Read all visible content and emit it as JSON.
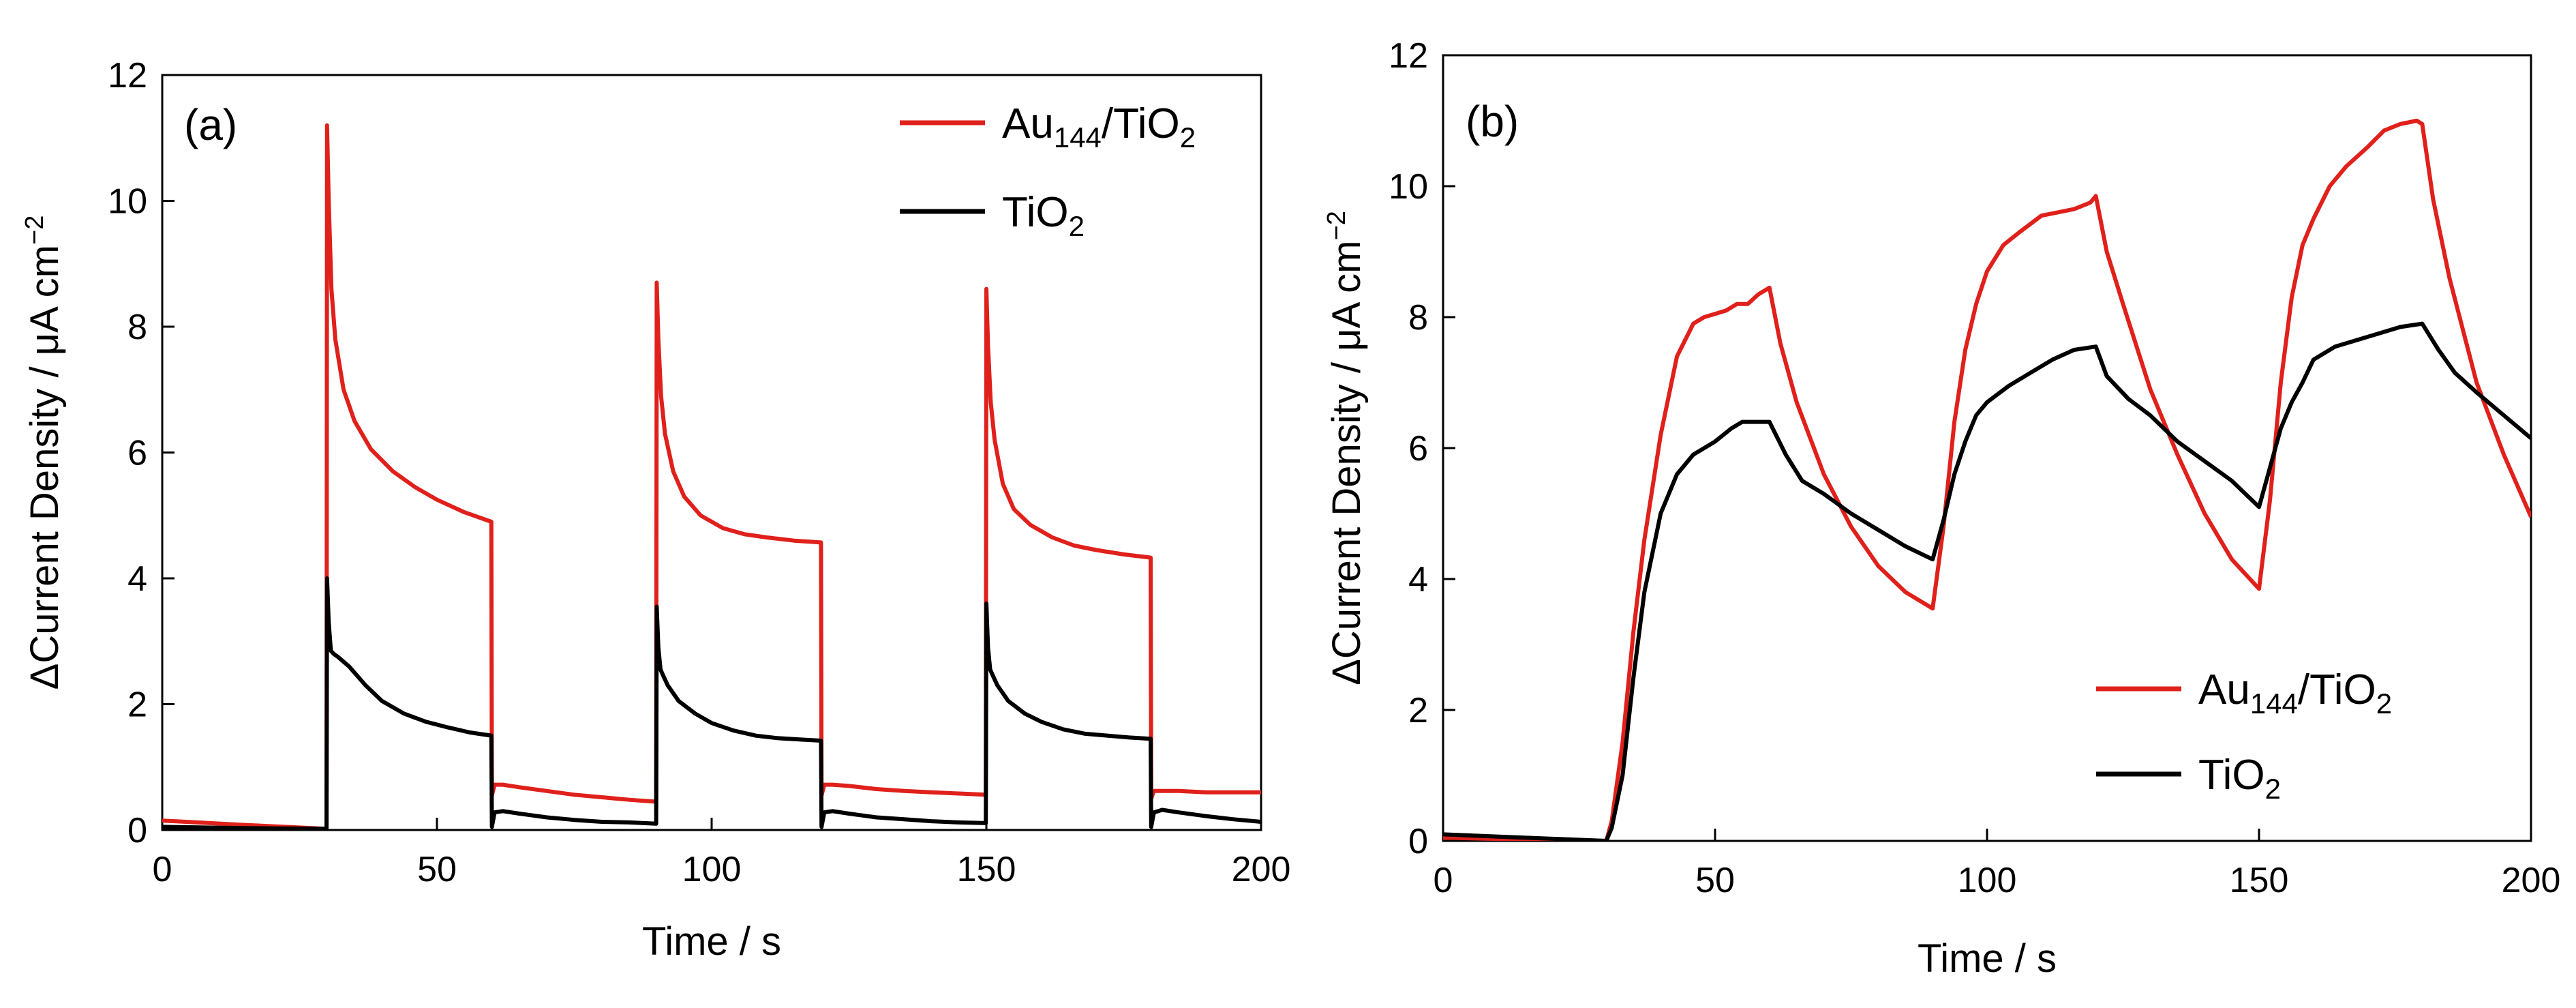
{
  "chart_data": [
    {
      "type": "line",
      "panel_label": "(a)",
      "xlabel": "Time / s",
      "ylabel_main": "ΔCurrent Density",
      "ylabel_unit": "/ μA cm",
      "ylabel_unit_sup": "−2",
      "xlim": [
        0,
        200
      ],
      "ylim": [
        0,
        12
      ],
      "xticks": [
        0,
        50,
        100,
        150,
        200
      ],
      "yticks": [
        0,
        2,
        4,
        6,
        8,
        10,
        12
      ],
      "legend_position": "top-right",
      "series": [
        {
          "name": "Au144/TiO2",
          "label_base": "Au",
          "label_sub": "144",
          "label_mid": "/TiO",
          "label_sub2": "2",
          "color": "#e0201b",
          "x": [
            0,
            15,
            29.9,
            30,
            30.3,
            30.8,
            31.5,
            33,
            35,
            38,
            42,
            46,
            50,
            55,
            59.9,
            60,
            60.5,
            62,
            65,
            70,
            75,
            80,
            85,
            89.9,
            90,
            90.3,
            90.8,
            91.5,
            93,
            95,
            98,
            102,
            106,
            110,
            115,
            119.9,
            120,
            120.5,
            122,
            125,
            130,
            135,
            140,
            145,
            149.9,
            150,
            150.3,
            150.8,
            151.5,
            153,
            155,
            158,
            162,
            166,
            170,
            175,
            179.9,
            180,
            180.5,
            182,
            185,
            190,
            195,
            200
          ],
          "y": [
            0.15,
            0.08,
            0.02,
            11.2,
            10.0,
            8.6,
            7.8,
            7.0,
            6.5,
            6.05,
            5.7,
            5.45,
            5.25,
            5.05,
            4.9,
            0.55,
            0.72,
            0.72,
            0.68,
            0.62,
            0.56,
            0.52,
            0.48,
            0.45,
            8.7,
            7.8,
            6.9,
            6.3,
            5.7,
            5.3,
            5.0,
            4.8,
            4.7,
            4.65,
            4.6,
            4.57,
            0.55,
            0.72,
            0.72,
            0.7,
            0.65,
            0.62,
            0.6,
            0.58,
            0.56,
            8.6,
            7.7,
            6.8,
            6.2,
            5.5,
            5.1,
            4.85,
            4.65,
            4.52,
            4.45,
            4.38,
            4.33,
            0.5,
            0.62,
            0.62,
            0.62,
            0.6,
            0.6,
            0.6
          ]
        },
        {
          "name": "TiO2",
          "label_base": "TiO",
          "label_sub": "2",
          "label_mid": "",
          "label_sub2": "",
          "color": "#000000",
          "x": [
            0,
            15,
            29.9,
            30,
            30.3,
            30.7,
            31.2,
            32,
            34,
            37,
            40,
            44,
            48,
            52,
            56,
            59.9,
            60,
            60.5,
            62,
            65,
            70,
            75,
            80,
            85,
            89.9,
            90,
            90.3,
            90.7,
            91.2,
            92,
            94,
            97,
            100,
            104,
            108,
            112,
            116,
            119.9,
            120,
            120.5,
            122,
            125,
            130,
            135,
            140,
            145,
            149.9,
            150,
            150.3,
            150.7,
            151.2,
            152,
            154,
            157,
            160,
            164,
            168,
            172,
            176,
            179.9,
            180,
            180.5,
            182,
            185,
            190,
            195,
            200
          ],
          "y": [
            0.05,
            0.03,
            0.02,
            4.0,
            3.3,
            2.85,
            2.8,
            2.75,
            2.6,
            2.3,
            2.05,
            1.85,
            1.72,
            1.63,
            1.55,
            1.5,
            0.05,
            0.28,
            0.3,
            0.26,
            0.2,
            0.16,
            0.13,
            0.12,
            0.1,
            3.55,
            2.9,
            2.55,
            2.45,
            2.3,
            2.05,
            1.85,
            1.7,
            1.58,
            1.5,
            1.46,
            1.44,
            1.42,
            0.05,
            0.28,
            0.3,
            0.26,
            0.2,
            0.17,
            0.14,
            0.12,
            0.11,
            3.6,
            2.9,
            2.55,
            2.45,
            2.3,
            2.05,
            1.85,
            1.72,
            1.6,
            1.53,
            1.5,
            1.47,
            1.45,
            0.05,
            0.28,
            0.32,
            0.28,
            0.22,
            0.17,
            0.13
          ]
        }
      ]
    },
    {
      "type": "line",
      "panel_label": "(b)",
      "xlabel": "Time / s",
      "ylabel_main": "ΔCurrent Density",
      "ylabel_unit": "/ μA cm",
      "ylabel_unit_sup": "−2",
      "xlim": [
        0,
        200
      ],
      "ylim": [
        0,
        12
      ],
      "xticks": [
        0,
        50,
        100,
        150,
        200
      ],
      "yticks": [
        0,
        2,
        4,
        6,
        8,
        10,
        12
      ],
      "legend_position": "bottom-right",
      "series": [
        {
          "name": "Au144/TiO2",
          "label_base": "Au",
          "label_sub": "144",
          "label_mid": "/TiO",
          "label_sub2": "2",
          "color": "#e0201b",
          "x": [
            0,
            15,
            30,
            31,
            33,
            35,
            37,
            40,
            43,
            46,
            48,
            50,
            52,
            54,
            56,
            58,
            60,
            62,
            65,
            70,
            75,
            80,
            85,
            90,
            92,
            94,
            96,
            98,
            100,
            103,
            106,
            110,
            113,
            116,
            119,
            120,
            122,
            125,
            130,
            135,
            140,
            145,
            150,
            152,
            154,
            156,
            158,
            160,
            163,
            166,
            170,
            173,
            176,
            179,
            180,
            182,
            185,
            190,
            195,
            200
          ],
          "y": [
            0.05,
            0.02,
            0.0,
            0.3,
            1.5,
            3.2,
            4.6,
            6.2,
            7.4,
            7.9,
            8.0,
            8.05,
            8.1,
            8.2,
            8.2,
            8.35,
            8.45,
            7.6,
            6.7,
            5.6,
            4.8,
            4.2,
            3.8,
            3.55,
            4.8,
            6.4,
            7.5,
            8.2,
            8.7,
            9.1,
            9.3,
            9.55,
            9.6,
            9.65,
            9.75,
            9.85,
            9.0,
            8.2,
            6.9,
            5.9,
            5.0,
            4.3,
            3.85,
            5.2,
            7.0,
            8.3,
            9.1,
            9.5,
            10.0,
            10.3,
            10.6,
            10.85,
            10.95,
            11.0,
            10.95,
            9.8,
            8.6,
            7.0,
            5.9,
            4.95
          ]
        },
        {
          "name": "TiO2",
          "label_base": "TiO",
          "label_sub": "2",
          "label_mid": "",
          "label_sub2": "",
          "color": "#000000",
          "x": [
            0,
            15,
            30,
            31,
            33,
            35,
            37,
            40,
            43,
            46,
            50,
            53,
            55,
            57,
            60,
            63,
            66,
            70,
            75,
            80,
            85,
            90,
            92,
            94,
            96,
            98,
            100,
            104,
            108,
            112,
            116,
            120,
            122,
            126,
            130,
            135,
            140,
            145,
            150,
            152,
            154,
            156,
            158,
            160,
            164,
            168,
            172,
            176,
            180,
            183,
            186,
            190,
            195,
            200
          ],
          "y": [
            0.1,
            0.05,
            0.0,
            0.2,
            1.0,
            2.5,
            3.8,
            5.0,
            5.6,
            5.9,
            6.1,
            6.3,
            6.4,
            6.4,
            6.4,
            5.9,
            5.5,
            5.3,
            5.0,
            4.75,
            4.5,
            4.3,
            4.9,
            5.6,
            6.1,
            6.5,
            6.7,
            6.95,
            7.15,
            7.35,
            7.5,
            7.55,
            7.1,
            6.75,
            6.5,
            6.1,
            5.8,
            5.5,
            5.1,
            5.7,
            6.3,
            6.7,
            7.0,
            7.35,
            7.55,
            7.65,
            7.75,
            7.85,
            7.9,
            7.5,
            7.15,
            6.85,
            6.5,
            6.15
          ]
        }
      ]
    }
  ]
}
